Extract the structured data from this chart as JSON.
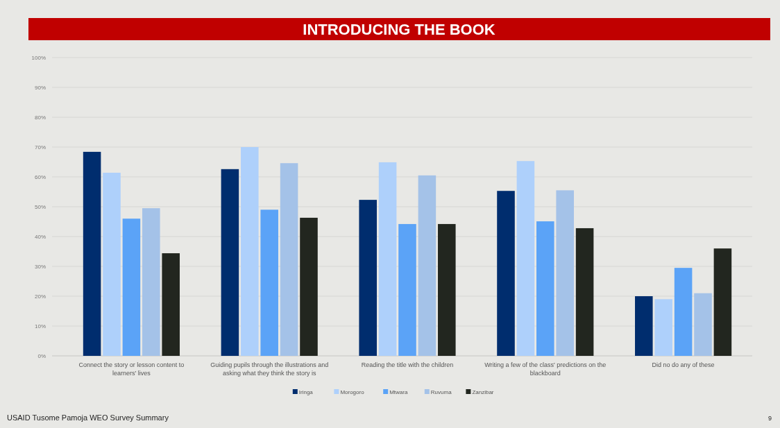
{
  "chart_data": {
    "type": "bar",
    "title": "INTRODUCING THE BOOK",
    "categories": [
      "Connect the story or lesson content to learners' lives",
      "Guiding pupils through the illustrations and asking what they think the story is",
      "Reading the title with the children",
      "Writing a few of the class' predictions on the blackboard",
      "Did no do any of these"
    ],
    "series": [
      {
        "name": "Iringa",
        "color": "#002d6e",
        "values": [
          68.4,
          62.6,
          52.3,
          55.3,
          20
        ]
      },
      {
        "name": "Morogoro",
        "color": "#aed0fb",
        "values": [
          61.4,
          70,
          64.9,
          65.3,
          19
        ]
      },
      {
        "name": "Mtwara",
        "color": "#5ba3f7",
        "values": [
          46,
          49,
          44.2,
          45.1,
          29.5
        ]
      },
      {
        "name": "Ruvuma",
        "color": "#a4c2e8",
        "values": [
          49.5,
          64.6,
          60.5,
          55.5,
          21
        ]
      },
      {
        "name": "Zanzibar",
        "color": "#22261f",
        "values": [
          34.4,
          46.3,
          44.2,
          42.8,
          36
        ]
      }
    ],
    "ylim": [
      0,
      100
    ],
    "yticks": [
      {
        "value": 0,
        "label": "0%"
      },
      {
        "value": 10,
        "label": "10%"
      },
      {
        "value": 20,
        "label": "20%"
      },
      {
        "value": 30,
        "label": "30%"
      },
      {
        "value": 40,
        "label": "40%"
      },
      {
        "value": 50,
        "label": "50%"
      },
      {
        "value": 60,
        "label": "60%"
      },
      {
        "value": 70,
        "label": "70%"
      },
      {
        "value": 80,
        "label": "80%"
      },
      {
        "value": 90,
        "label": "90%"
      },
      {
        "value": 100,
        "label": "100%"
      }
    ],
    "grid": "y",
    "legend": "bottom",
    "annotations": [
      "USAID Tusome Pamoja WEO Survey Summary",
      "9"
    ]
  }
}
